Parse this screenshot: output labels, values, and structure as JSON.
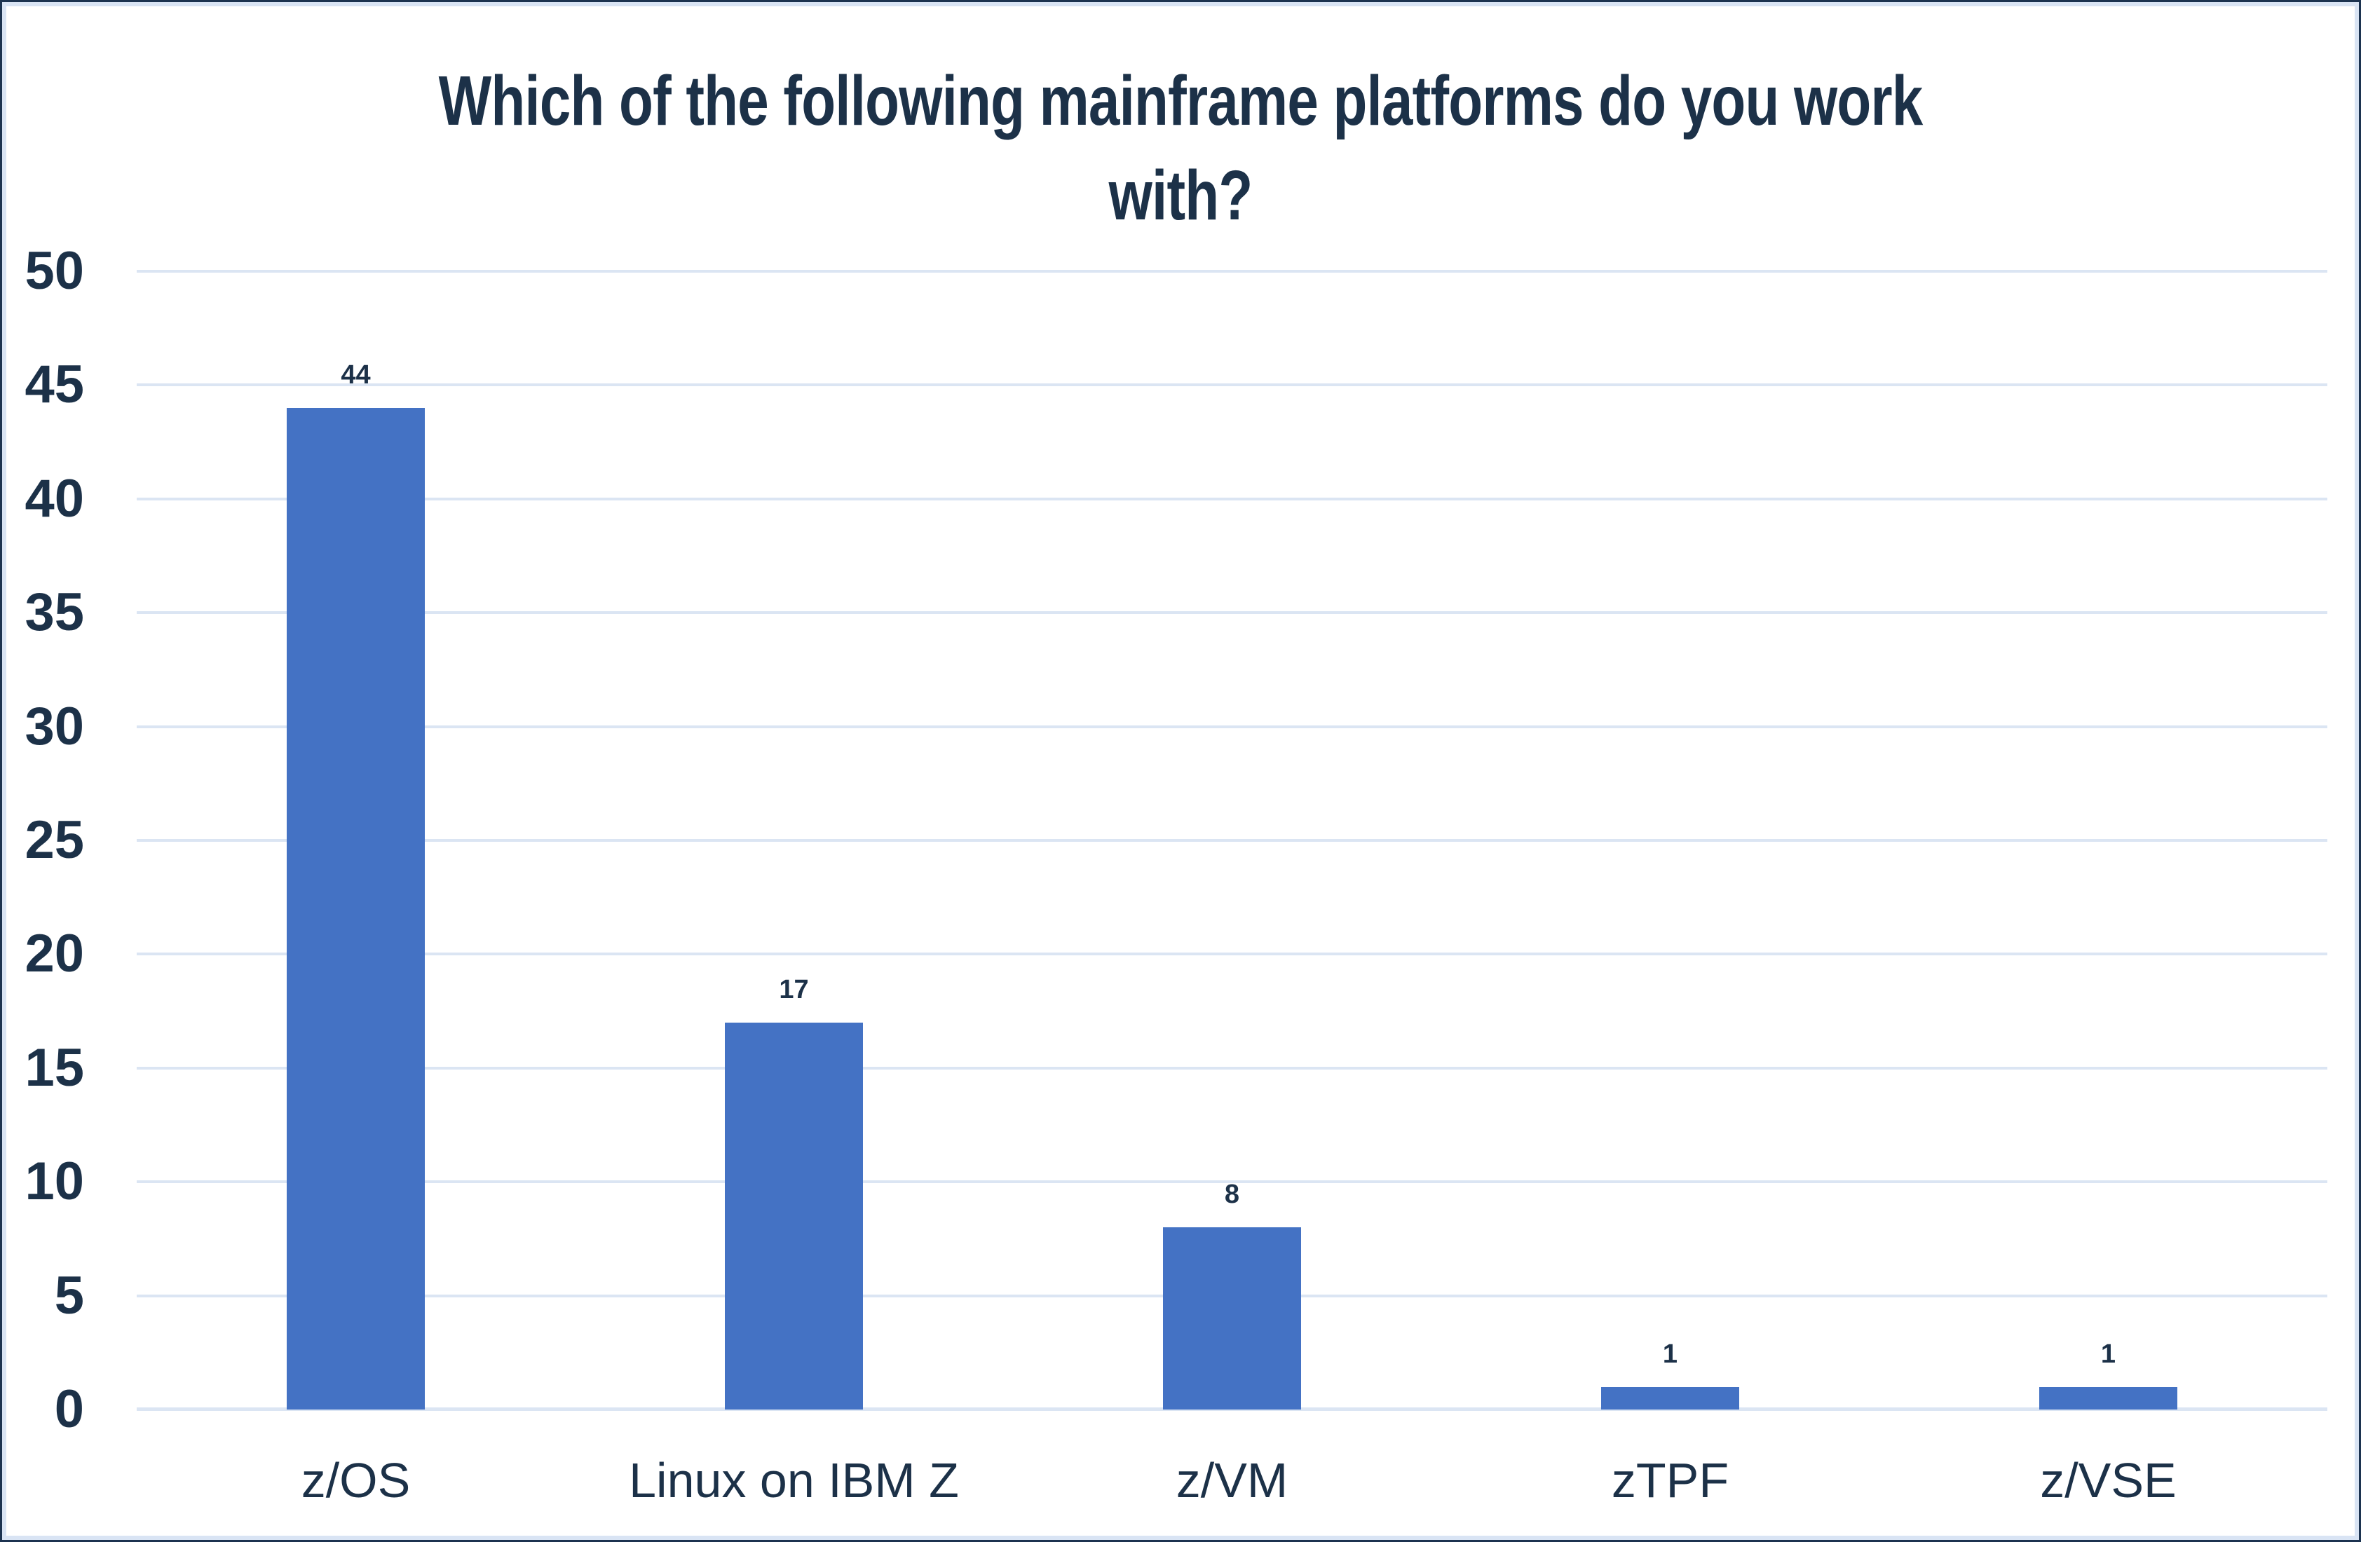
{
  "colors": {
    "background": "#ffffff",
    "frame_border": "#1c3350",
    "frame_inner_border": "#d9e4f4",
    "text": "#1c3148",
    "gridline": "#dbe5f3",
    "bar": "#4472C4"
  },
  "chart_data": {
    "type": "bar",
    "title": "Which of the following mainframe platforms do you work with?",
    "title_lines": [
      "Which of the following mainframe platforms do you work",
      "with?"
    ],
    "categories": [
      "z/OS",
      "Linux on IBM Z",
      "z/VM",
      "zTPF",
      "z/VSE"
    ],
    "values": [
      44,
      17,
      8,
      1,
      1
    ],
    "xlabel": "",
    "ylabel": "",
    "ylim": [
      0,
      50
    ],
    "yticks": [
      0,
      5,
      10,
      15,
      20,
      25,
      30,
      35,
      40,
      45,
      50
    ],
    "grid": true,
    "legend_position": "none",
    "bar_color": "#4472C4",
    "gridline_color": "#dbe5f3",
    "text_color": "#1c3148"
  }
}
